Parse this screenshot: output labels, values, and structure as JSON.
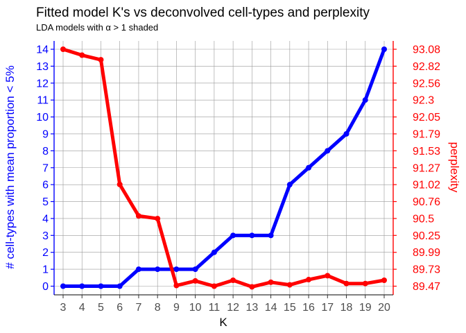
{
  "chart_data": {
    "type": "line",
    "title": "Fitted model K's vs deconvolved cell-types and perplexity",
    "subtitle": "LDA models with α > 1 shaded",
    "xlabel": "K",
    "ylabel_left": "# cell-types with mean proportion < 5%",
    "ylabel_right": "perplexity",
    "x": [
      3,
      4,
      5,
      6,
      7,
      8,
      9,
      10,
      11,
      12,
      13,
      14,
      15,
      16,
      17,
      18,
      19,
      20
    ],
    "x_tick_labels": [
      "3",
      "4",
      "5",
      "6",
      "7",
      "8",
      "9",
      "10",
      "11",
      "12",
      "13",
      "14",
      "15",
      "16",
      "17",
      "18",
      "19",
      "20"
    ],
    "xlim": [
      2.2,
      20.8
    ],
    "y_left_lim": [
      -0.6,
      14.6
    ],
    "y_left_tick_labels": [
      "0",
      "1",
      "2",
      "3",
      "4",
      "5",
      "6",
      "7",
      "8",
      "9",
      "10",
      "11",
      "12",
      "13",
      "14"
    ],
    "y_right_tick_labels": [
      "89.47",
      "89.73",
      "89.99",
      "90.25",
      "90.5",
      "90.76",
      "91.02",
      "91.27",
      "91.53",
      "91.79",
      "92.05",
      "92.3",
      "92.56",
      "92.82",
      "93.08"
    ],
    "grid": true,
    "colors": {
      "left_axis": "#0000ff",
      "right_axis": "#ff0000",
      "grid": "#999999"
    },
    "series": [
      {
        "axis": "left",
        "color": "#0000ff",
        "values": [
          0,
          0,
          0,
          0,
          1,
          1,
          1,
          1,
          2,
          3,
          3,
          3,
          6,
          7,
          8,
          9,
          11,
          14
        ]
      },
      {
        "axis": "right",
        "color": "#ff0000",
        "values": [
          93.08,
          92.99,
          92.92,
          91.02,
          90.54,
          90.5,
          89.48,
          89.55,
          89.47,
          89.56,
          89.46,
          89.53,
          89.49,
          89.57,
          89.63,
          89.51,
          89.51,
          89.56
        ]
      }
    ]
  }
}
